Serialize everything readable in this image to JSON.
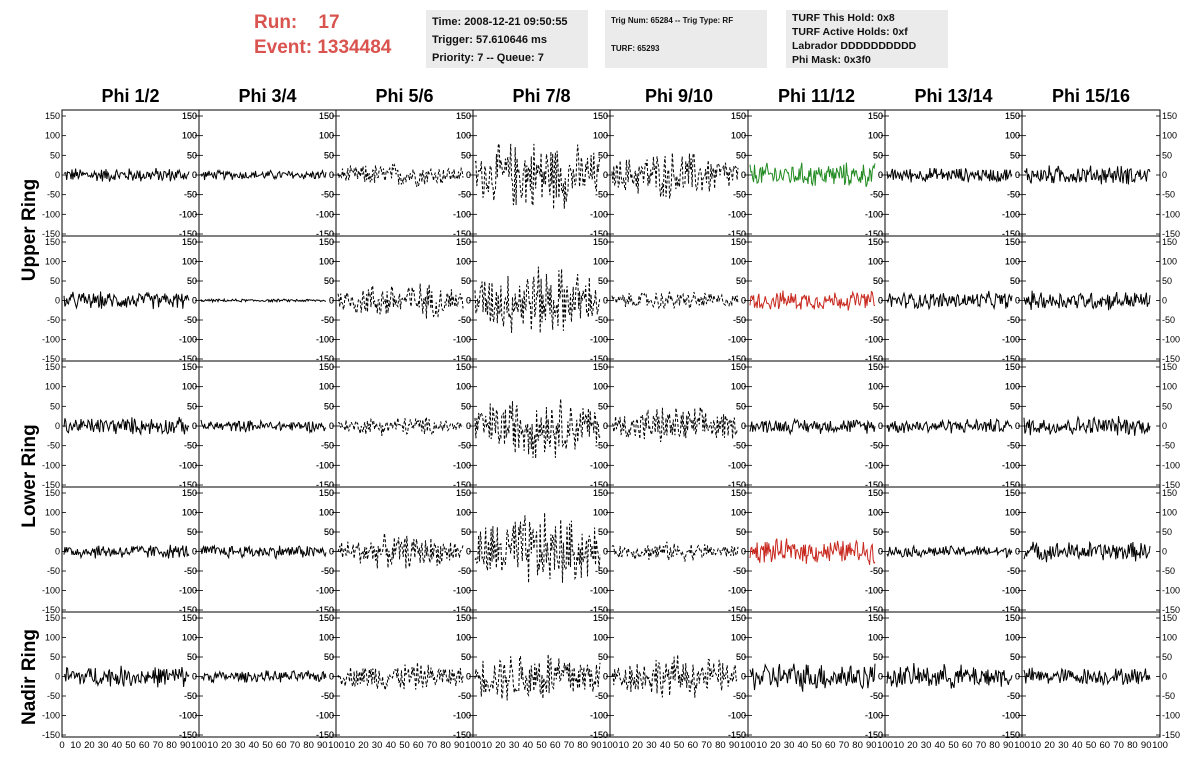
{
  "header": {
    "run_label": "Run:",
    "run_value": "17",
    "event_label": "Event:",
    "event_value": "1334484",
    "time_line": "Time: 2008-12-21 09:50:55",
    "trigger_line": "Trigger: 57.610646 ms",
    "priority_line": "Priority: 7 -- Queue: 7",
    "trig_line": "Trig Num: 65284 -- Trig Type: RF",
    "turf_line": "TURF: 65293",
    "turf_hold_line": "TURF This Hold: 0x8",
    "turf_active_line": "TURF Active Holds: 0xf",
    "labrador_line": "Labrador DDDDDDDDDD",
    "phi_mask_line": "Phi Mask: 0x3f0"
  },
  "columns": [
    "Phi 1/2",
    "Phi 3/4",
    "Phi 5/6",
    "Phi 7/8",
    "Phi 9/10",
    "Phi 11/12",
    "Phi 13/14",
    "Phi 15/16"
  ],
  "rings": [
    "Upper Ring",
    "Lower Ring",
    "Nadir Ring"
  ],
  "y_ticks": [
    150,
    100,
    50,
    0,
    -50,
    -100,
    -150
  ],
  "x_ticks": [
    0,
    10,
    20,
    30,
    40,
    50,
    60,
    70,
    80,
    90,
    100
  ],
  "colors": {
    "default": "#000000",
    "green": "#228b22",
    "red": "#c8281e",
    "header_red": "#d9534f",
    "infobox": "#ebebeb"
  },
  "panels": [
    [
      {
        "style": "solid",
        "color": "default",
        "amp": 15
      },
      {
        "style": "solid",
        "color": "default",
        "amp": 10
      },
      {
        "style": "dashed",
        "color": "default",
        "amp": 25
      },
      {
        "style": "dashed",
        "color": "default",
        "amp": 75
      },
      {
        "style": "dashed",
        "color": "default",
        "amp": 50
      },
      {
        "style": "solid",
        "color": "green",
        "amp": 25
      },
      {
        "style": "solid",
        "color": "default",
        "amp": 15
      },
      {
        "style": "solid",
        "color": "default",
        "amp": 20
      }
    ],
    [
      {
        "style": "solid",
        "color": "default",
        "amp": 18
      },
      {
        "style": "solid",
        "color": "default",
        "amp": 3
      },
      {
        "style": "dashed",
        "color": "default",
        "amp": 40
      },
      {
        "style": "dashed",
        "color": "default",
        "amp": 75
      },
      {
        "style": "dashed",
        "color": "default",
        "amp": 20
      },
      {
        "style": "solid",
        "color": "red",
        "amp": 20
      },
      {
        "style": "solid",
        "color": "default",
        "amp": 18
      },
      {
        "style": "solid",
        "color": "default",
        "amp": 20
      }
    ],
    [
      {
        "style": "solid",
        "color": "default",
        "amp": 18
      },
      {
        "style": "solid",
        "color": "default",
        "amp": 12
      },
      {
        "style": "dashed",
        "color": "default",
        "amp": 20
      },
      {
        "style": "dashed",
        "color": "default",
        "amp": 65
      },
      {
        "style": "dashed",
        "color": "default",
        "amp": 40
      },
      {
        "style": "solid",
        "color": "default",
        "amp": 15
      },
      {
        "style": "solid",
        "color": "default",
        "amp": 15
      },
      {
        "style": "solid",
        "color": "default",
        "amp": 20
      }
    ],
    [
      {
        "style": "solid",
        "color": "default",
        "amp": 15
      },
      {
        "style": "solid",
        "color": "default",
        "amp": 14
      },
      {
        "style": "dashed",
        "color": "default",
        "amp": 35
      },
      {
        "style": "dashed",
        "color": "default",
        "amp": 80
      },
      {
        "style": "dashed",
        "color": "default",
        "amp": 20
      },
      {
        "style": "solid",
        "color": "red",
        "amp": 25
      },
      {
        "style": "solid",
        "color": "default",
        "amp": 12
      },
      {
        "style": "solid",
        "color": "default",
        "amp": 20
      }
    ],
    [
      {
        "style": "solid",
        "color": "default",
        "amp": 22
      },
      {
        "style": "solid",
        "color": "default",
        "amp": 12
      },
      {
        "style": "dashed",
        "color": "default",
        "amp": 30
      },
      {
        "style": "dashed",
        "color": "default",
        "amp": 60
      },
      {
        "style": "dashed",
        "color": "default",
        "amp": 45
      },
      {
        "style": "solid",
        "color": "default",
        "amp": 30
      },
      {
        "style": "solid",
        "color": "default",
        "amp": 25
      },
      {
        "style": "solid",
        "color": "default",
        "amp": 18
      }
    ]
  ]
}
